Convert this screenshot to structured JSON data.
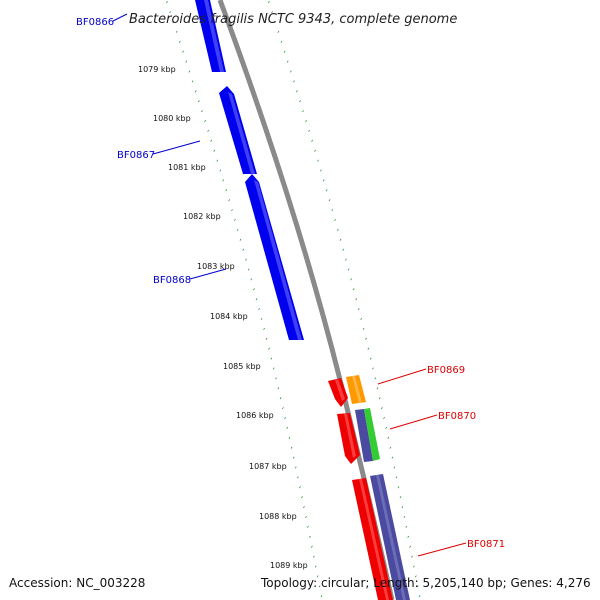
{
  "title": "Bacteroides fragilis NCTC 9343, complete genome",
  "footer": {
    "accession": "Accession: NC_003228",
    "summary": "Topology: circular; Length: 5,205,140 bp; Genes: 4,276"
  },
  "colors": {
    "backbone": "#8a8a8a",
    "tick": "#1a8a1a",
    "forward_label": "#0000cc",
    "reverse_label": "#dd0000",
    "forward_gene": "#0000ee",
    "reverse_gene": "#ee0000",
    "orange": "#ff9900",
    "green": "#33cc33",
    "slate": "#4a4aa0"
  },
  "scale_labels": [
    "1079 kbp",
    "1080 kbp",
    "1081 kbp",
    "1082 kbp",
    "1083 kbp",
    "1084 kbp",
    "1085 kbp",
    "1086 kbp",
    "1087 kbp",
    "1088 kbp",
    "1089 kbp"
  ],
  "gene_labels": {
    "forward": [
      "BF0866",
      "BF0867",
      "BF0868"
    ],
    "reverse": [
      "BF0869",
      "BF0870",
      "BF0871"
    ]
  }
}
